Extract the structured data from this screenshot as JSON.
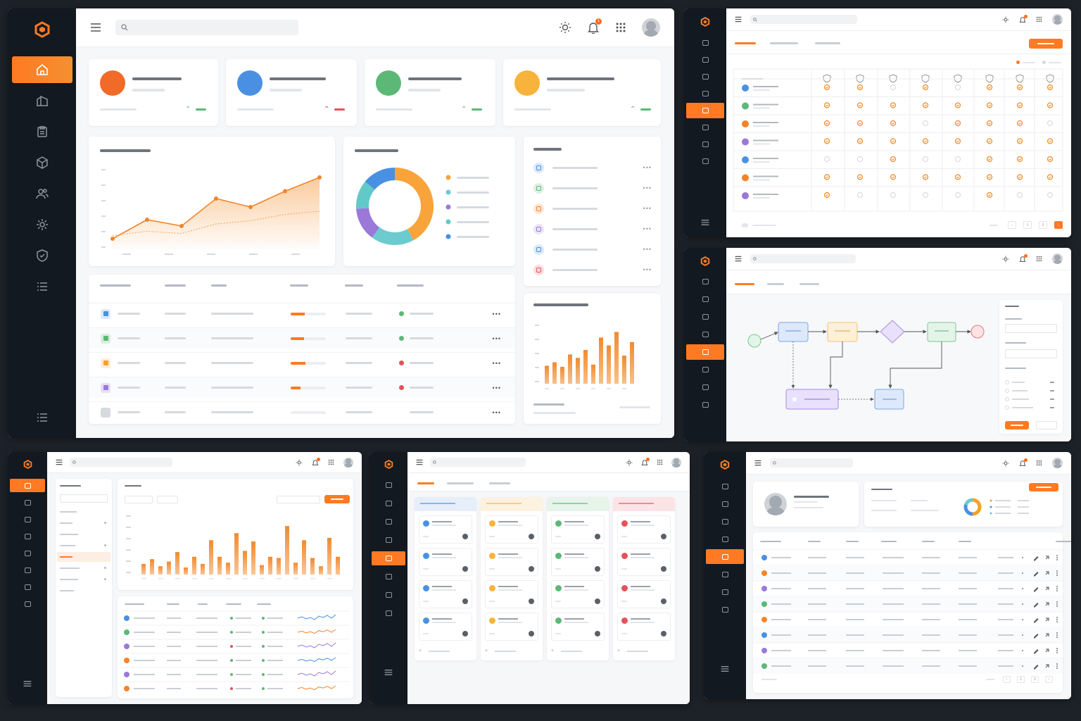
{
  "notifications": {
    "count": "1"
  },
  "icons": {
    "logo": "hexagon-logo-icon",
    "menu": "hamburger-menu-icon",
    "search": "search-icon",
    "theme": "sun-icon",
    "bell": "bell-icon",
    "apps": "grid-apps-icon",
    "nav": [
      "home-icon",
      "building-icon",
      "clipboard-icon",
      "cube-icon",
      "users-icon",
      "settings-icon",
      "shield-icon",
      "list-icon"
    ]
  },
  "colors": {
    "accent": "#ff7a22",
    "sidebar": "#121920",
    "blue": "#4a90e2",
    "green": "#5cb877",
    "purple": "#9a79d9",
    "teal": "#62c9c9",
    "red": "#e8505b",
    "yellow": "#f7b33b"
  },
  "dashboard": {
    "stats": [
      {
        "color": "#f26a28",
        "trend": "up"
      },
      {
        "color": "#4a90e2",
        "trend": "down"
      },
      {
        "color": "#5cb877",
        "trend": "up"
      },
      {
        "color": "#f7b33b",
        "trend": "up"
      }
    ],
    "line_chart": {
      "type": "area",
      "series": [
        {
          "values": [
            10,
            28,
            22,
            48,
            40,
            55,
            68
          ]
        },
        {
          "values": [
            5,
            9,
            7,
            16,
            19,
            25,
            28
          ]
        }
      ],
      "ylim": [
        0,
        80
      ]
    },
    "donut": {
      "type": "pie",
      "values": [
        42,
        18,
        14,
        12,
        14
      ],
      "colors": [
        "#f8a43a",
        "#6bcbcf",
        "#9a79d9",
        "#62c9c9",
        "#4a90e2"
      ]
    },
    "list_colors": [
      "#4a90e2",
      "#5cb877",
      "#f5832b",
      "#9a79d9",
      "#4a90e2",
      "#e8505b"
    ],
    "table_rows": [
      {
        "color": "#4a90e2",
        "progress": 0.4,
        "status": "#5cb877"
      },
      {
        "color": "#5cb877",
        "progress": 0.37,
        "status": "#5cb877"
      },
      {
        "color": "#f5a12b",
        "progress": 0.42,
        "status": "#e8505b"
      },
      {
        "color": "#9a79d9",
        "progress": 0.28,
        "status": "#e8505b"
      },
      {
        "color": "#d6dade",
        "progress": 0,
        "status": ""
      }
    ],
    "bar_chart": {
      "type": "bar",
      "values": [
        32,
        38,
        30,
        52,
        46,
        60,
        34,
        82,
        68,
        92,
        50,
        74,
        10
      ],
      "ylim": [
        0,
        100
      ]
    }
  },
  "permissions": {
    "row_colors": [
      "#4a90e2",
      "#5cb877",
      "#f5832b",
      "#9a79d9",
      "#4a90e2",
      "#f5832b",
      "#9a79d9"
    ],
    "matrix": [
      [
        1,
        1,
        0,
        1,
        0,
        1,
        1,
        1
      ],
      [
        1,
        1,
        1,
        1,
        1,
        1,
        1,
        1
      ],
      [
        1,
        1,
        1,
        0,
        1,
        1,
        1,
        0
      ],
      [
        1,
        1,
        1,
        1,
        1,
        1,
        1,
        1
      ],
      [
        0,
        0,
        1,
        0,
        0,
        1,
        1,
        1
      ],
      [
        1,
        1,
        1,
        1,
        1,
        1,
        1,
        1
      ],
      [
        1,
        0,
        0,
        0,
        0,
        1,
        0,
        0
      ]
    ],
    "pages": [
      "1",
      "3"
    ]
  },
  "analytics": {
    "bar_chart": {
      "type": "bar",
      "values": [
        18,
        26,
        14,
        22,
        38,
        12,
        30,
        18,
        58,
        30,
        20,
        70,
        40,
        56,
        16,
        30,
        28,
        82,
        20,
        58,
        28,
        14,
        62,
        30
      ],
      "ylim": [
        0,
        100
      ]
    },
    "row_colors": [
      "#4a90e2",
      "#5cb877",
      "#9a79d9",
      "#f5832b",
      "#9a79d9",
      "#f5832b"
    ],
    "status1": [
      "#5cb877",
      "#5cb877",
      "#e8505b",
      "#5cb877",
      "#5cb877",
      "#e8505b"
    ],
    "spark_colors": [
      "#4a90e2",
      "#f5832b",
      "#9a79d9",
      "#4a90e2",
      "#9a79d9",
      "#f5832b"
    ]
  },
  "kanban": {
    "columns": [
      {
        "color": "#4a90e2",
        "bg": "#e6eefa"
      },
      {
        "color": "#f7b33b",
        "bg": "#fdf2e0"
      },
      {
        "color": "#5cb877",
        "bg": "#e6f4ea"
      },
      {
        "color": "#e8505b",
        "bg": "#fbe4e6"
      }
    ]
  },
  "users": {
    "row_colors": [
      "#4a90e2",
      "#f5832b",
      "#9a79d9",
      "#5cb877",
      "#f5832b",
      "#4a90e2",
      "#9a79d9",
      "#5cb877"
    ],
    "pages": [
      "1",
      "3"
    ],
    "donut": {
      "type": "pie",
      "values": [
        50,
        30,
        20
      ],
      "colors": [
        "#f5a12b",
        "#4a90e2",
        "#6bcbcf"
      ]
    }
  }
}
